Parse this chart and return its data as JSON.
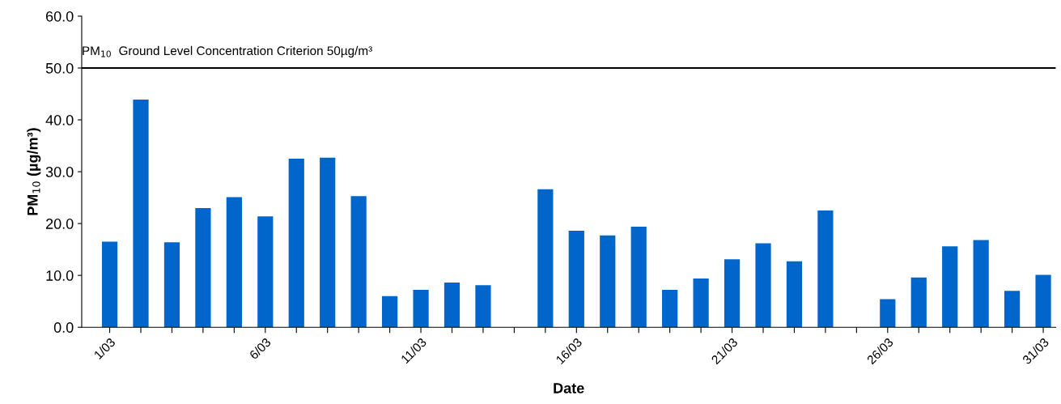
{
  "chart_data": {
    "type": "bar",
    "xlabel": "Date",
    "ylabel": "PM$_{10}$ (µg/m³)",
    "categories": [
      "1/03",
      null,
      null,
      null,
      null,
      "6/03",
      null,
      null,
      null,
      null,
      "11/03",
      null,
      null,
      null,
      null,
      "16/03",
      null,
      null,
      null,
      null,
      "21/03",
      null,
      null,
      null,
      null,
      "26/03",
      null,
      null,
      null,
      null,
      "31/03"
    ],
    "values": [
      16.5,
      43.9,
      16.4,
      23.0,
      25.1,
      21.4,
      32.5,
      32.7,
      25.3,
      6.0,
      7.2,
      8.6,
      8.1,
      null,
      26.6,
      18.6,
      17.7,
      19.4,
      7.2,
      9.4,
      13.1,
      16.2,
      12.7,
      22.5,
      null,
      5.4,
      9.6,
      15.6,
      16.8,
      7.0,
      10.1
    ],
    "color": "#0066cc",
    "ylim": [
      0,
      60
    ],
    "yticks": [
      {
        "value": 0,
        "label": "0.0"
      },
      {
        "value": 10,
        "label": "10.0"
      },
      {
        "value": 20,
        "label": "20.0"
      },
      {
        "value": 30,
        "label": "30.0"
      },
      {
        "value": 40,
        "label": "40.0"
      },
      {
        "value": 50,
        "label": "50.0"
      },
      {
        "value": 60,
        "label": "60.0"
      }
    ],
    "ref_lines": [
      {
        "axis": "y",
        "value": 50,
        "label": "PM$_{10}$  Ground Level Concentration Criterion 50µg/m³",
        "color": "#000000"
      }
    ],
    "grid": false
  }
}
